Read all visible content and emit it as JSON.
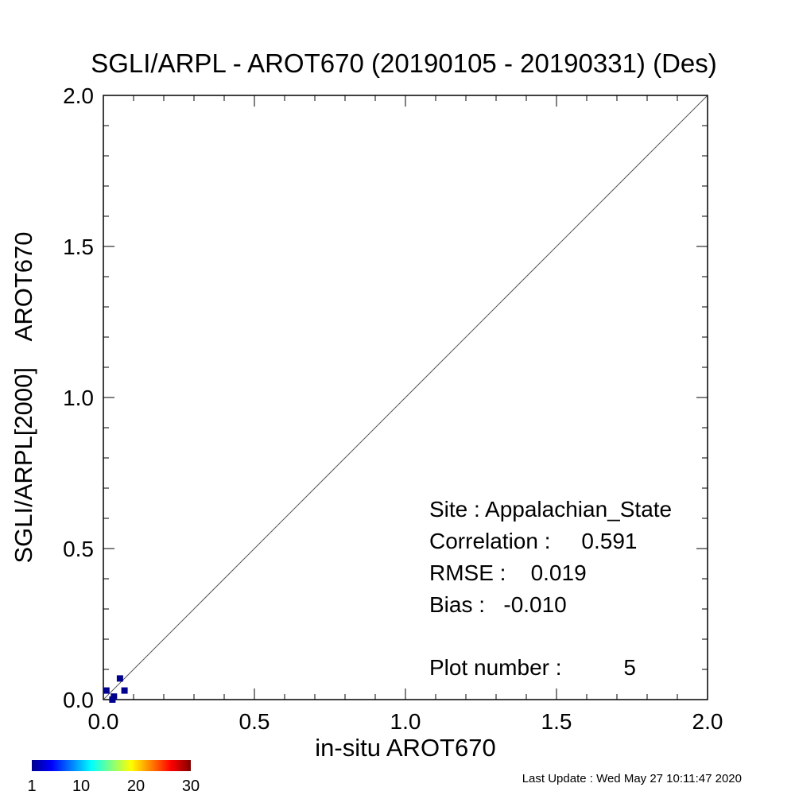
{
  "chart_data": {
    "type": "scatter",
    "title": "SGLI/ARPL - AROT670 (20190105 - 20190331) (Des)",
    "xlabel": "in-situ AROT670",
    "ylabel": "SGLI/ARPL[2000]    AROT670",
    "xlim": [
      0,
      2
    ],
    "ylim": [
      0,
      2
    ],
    "x_ticks": [
      "0.0",
      "0.5",
      "1.0",
      "1.5",
      "2.0"
    ],
    "y_ticks": [
      "0.0",
      "0.5",
      "1.0",
      "1.5",
      "2.0"
    ],
    "reference_line": "1:1",
    "grid": false,
    "point_color": "#00008f",
    "points": [
      {
        "x": 0.01,
        "y": 0.03,
        "count": 1
      },
      {
        "x": 0.035,
        "y": 0.01,
        "count": 1
      },
      {
        "x": 0.055,
        "y": 0.07,
        "count": 1
      },
      {
        "x": 0.07,
        "y": 0.03,
        "count": 1
      },
      {
        "x": 0.03,
        "y": 0.0,
        "count": 1
      }
    ],
    "stats": {
      "site_line": "Site : Appalachian_State",
      "correlation_line": "Correlation :     0.591",
      "rmse_line": "RMSE :    0.019",
      "bias_line": "Bias :   -0.010",
      "plot_number_line": "Plot number :          5"
    },
    "colorbar": {
      "colors": [
        "#00008f",
        "#0000ff",
        "#0080ff",
        "#00ffff",
        "#80ff80",
        "#ffff00",
        "#ff8000",
        "#ff0000",
        "#800000"
      ],
      "tick_labels": [
        "1",
        "10",
        "20",
        "30"
      ],
      "tick_values": [
        1,
        10,
        20,
        30
      ],
      "range": [
        1,
        30
      ]
    }
  },
  "footer": {
    "last_update": "Last Update : Wed May 27 10:11:47 2020"
  }
}
